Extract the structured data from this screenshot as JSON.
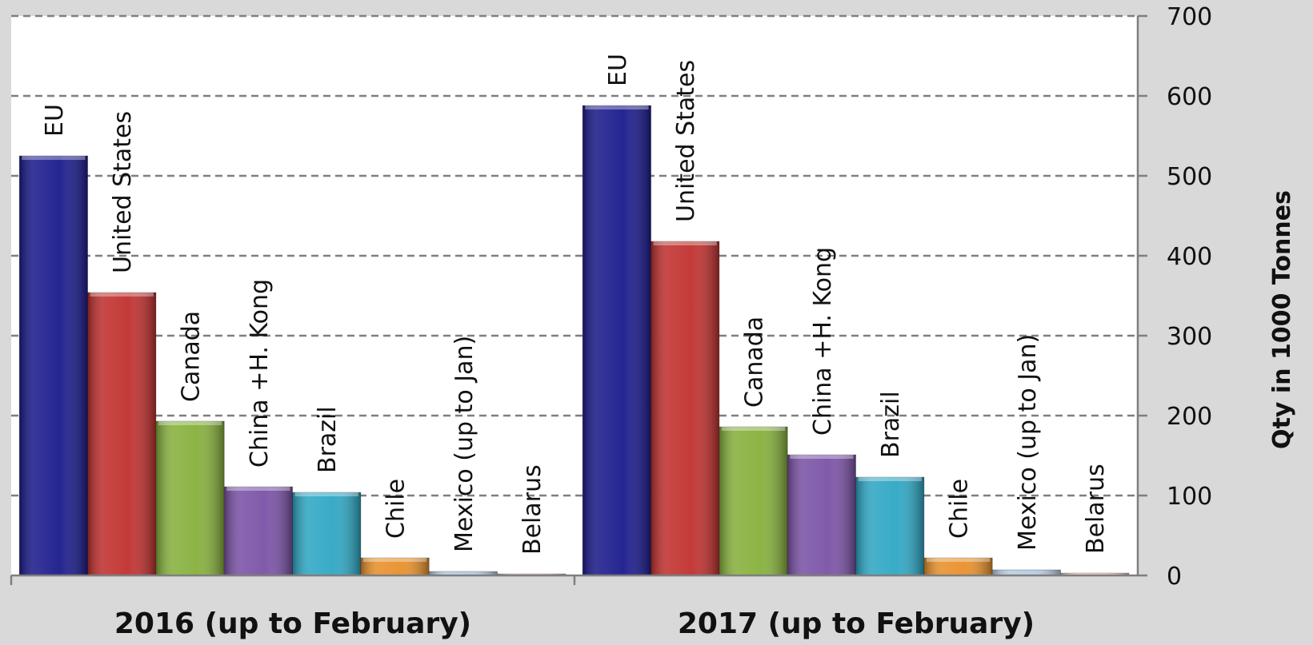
{
  "chart_data": {
    "type": "bar",
    "title": "",
    "xlabel": "",
    "ylabel": "Qty in 1000 Tonnes",
    "ylim": [
      0,
      700
    ],
    "yticks": [
      0,
      100,
      200,
      300,
      400,
      500,
      600,
      700
    ],
    "y_axis_position": "right",
    "grid": true,
    "legend": "none",
    "categories": [
      "2016 (up to February)",
      "2017 (up to February)"
    ],
    "series": [
      {
        "name": "EU",
        "color": "#1a1a8c",
        "values": [
          525,
          588
        ]
      },
      {
        "name": "United States",
        "color": "#c0302e",
        "values": [
          354,
          418
        ]
      },
      {
        "name": "Canada",
        "color": "#86b03c",
        "values": [
          193,
          186
        ]
      },
      {
        "name": "China +H. Kong",
        "color": "#7a52a6",
        "values": [
          111,
          151
        ]
      },
      {
        "name": "Brazil",
        "color": "#2ea7c4",
        "values": [
          104,
          123
        ]
      },
      {
        "name": "Chile",
        "color": "#e8902a",
        "values": [
          22,
          22
        ]
      },
      {
        "name": "Mexico (up to Jan)",
        "color": "#b8cce4",
        "values": [
          5,
          7
        ]
      },
      {
        "name": "Belarus",
        "color": "#f2c9c4",
        "values": [
          2,
          3
        ]
      }
    ]
  }
}
